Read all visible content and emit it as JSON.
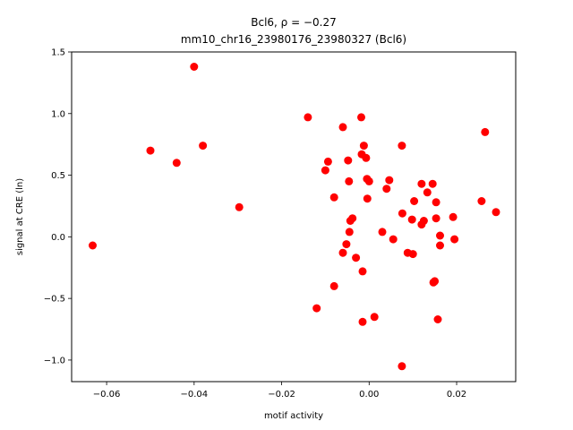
{
  "chart_data": {
    "type": "scatter",
    "title_line1": "Bcl6, ρ = −0.27",
    "title_line2": "mm10_chr16_23980176_23980327 (Bcl6)",
    "xlabel": "motif activity",
    "ylabel": "signal at CRE (ln)",
    "xlim": [
      -0.068,
      0.0335
    ],
    "ylim": [
      -1.175,
      1.5
    ],
    "xticks": [
      -0.06,
      -0.04,
      -0.02,
      0.0,
      0.02
    ],
    "xtick_labels": [
      "−0.06",
      "−0.04",
      "−0.02",
      "0.00",
      "0.02"
    ],
    "yticks": [
      -1.0,
      -0.5,
      0.0,
      0.5,
      1.0,
      1.5
    ],
    "ytick_labels": [
      "−1.0",
      "−0.5",
      "0.0",
      "0.5",
      "1.0",
      "1.5"
    ],
    "grid": false,
    "marker_color": "#ff0000",
    "points": [
      {
        "x": -0.0632,
        "y": -0.07
      },
      {
        "x": -0.05,
        "y": 0.7
      },
      {
        "x": -0.044,
        "y": 0.6
      },
      {
        "x": -0.04,
        "y": 1.38
      },
      {
        "x": -0.038,
        "y": 0.74
      },
      {
        "x": -0.0297,
        "y": 0.24
      },
      {
        "x": -0.014,
        "y": 0.97
      },
      {
        "x": -0.012,
        "y": -0.58
      },
      {
        "x": -0.01,
        "y": 0.54
      },
      {
        "x": -0.0094,
        "y": 0.61
      },
      {
        "x": -0.008,
        "y": 0.32
      },
      {
        "x": -0.008,
        "y": -0.4
      },
      {
        "x": -0.006,
        "y": 0.89
      },
      {
        "x": -0.006,
        "y": -0.13
      },
      {
        "x": -0.0052,
        "y": -0.06
      },
      {
        "x": -0.0048,
        "y": 0.62
      },
      {
        "x": -0.0046,
        "y": 0.45
      },
      {
        "x": -0.0045,
        "y": 0.04
      },
      {
        "x": -0.0043,
        "y": 0.13
      },
      {
        "x": -0.0038,
        "y": 0.15
      },
      {
        "x": -0.003,
        "y": -0.17
      },
      {
        "x": -0.0018,
        "y": 0.97
      },
      {
        "x": -0.0017,
        "y": 0.67
      },
      {
        "x": -0.0015,
        "y": -0.28
      },
      {
        "x": -0.0015,
        "y": -0.69
      },
      {
        "x": -0.0012,
        "y": 0.74
      },
      {
        "x": -0.0007,
        "y": 0.64
      },
      {
        "x": -0.0005,
        "y": 0.47
      },
      {
        "x": -0.0004,
        "y": 0.31
      },
      {
        "x": 0.0,
        "y": 0.45
      },
      {
        "x": 0.0012,
        "y": -0.65
      },
      {
        "x": 0.003,
        "y": 0.04
      },
      {
        "x": 0.004,
        "y": 0.39
      },
      {
        "x": 0.0046,
        "y": 0.46
      },
      {
        "x": 0.0055,
        "y": -0.02
      },
      {
        "x": 0.0075,
        "y": 0.74
      },
      {
        "x": 0.0076,
        "y": 0.19
      },
      {
        "x": 0.0075,
        "y": -1.05
      },
      {
        "x": 0.0088,
        "y": -0.13
      },
      {
        "x": 0.0098,
        "y": 0.14
      },
      {
        "x": 0.01,
        "y": -0.14
      },
      {
        "x": 0.0103,
        "y": 0.29
      },
      {
        "x": 0.012,
        "y": 0.43
      },
      {
        "x": 0.012,
        "y": 0.1
      },
      {
        "x": 0.0125,
        "y": 0.13
      },
      {
        "x": 0.0133,
        "y": 0.36
      },
      {
        "x": 0.0145,
        "y": 0.43
      },
      {
        "x": 0.0147,
        "y": -0.37
      },
      {
        "x": 0.015,
        "y": -0.36
      },
      {
        "x": 0.0153,
        "y": 0.28
      },
      {
        "x": 0.0153,
        "y": 0.15
      },
      {
        "x": 0.0157,
        "y": -0.67
      },
      {
        "x": 0.0162,
        "y": 0.01
      },
      {
        "x": 0.0162,
        "y": -0.07
      },
      {
        "x": 0.0192,
        "y": 0.16
      },
      {
        "x": 0.0195,
        "y": -0.02
      },
      {
        "x": 0.0257,
        "y": 0.29
      },
      {
        "x": 0.0265,
        "y": 0.85
      },
      {
        "x": 0.029,
        "y": 0.2
      }
    ]
  }
}
